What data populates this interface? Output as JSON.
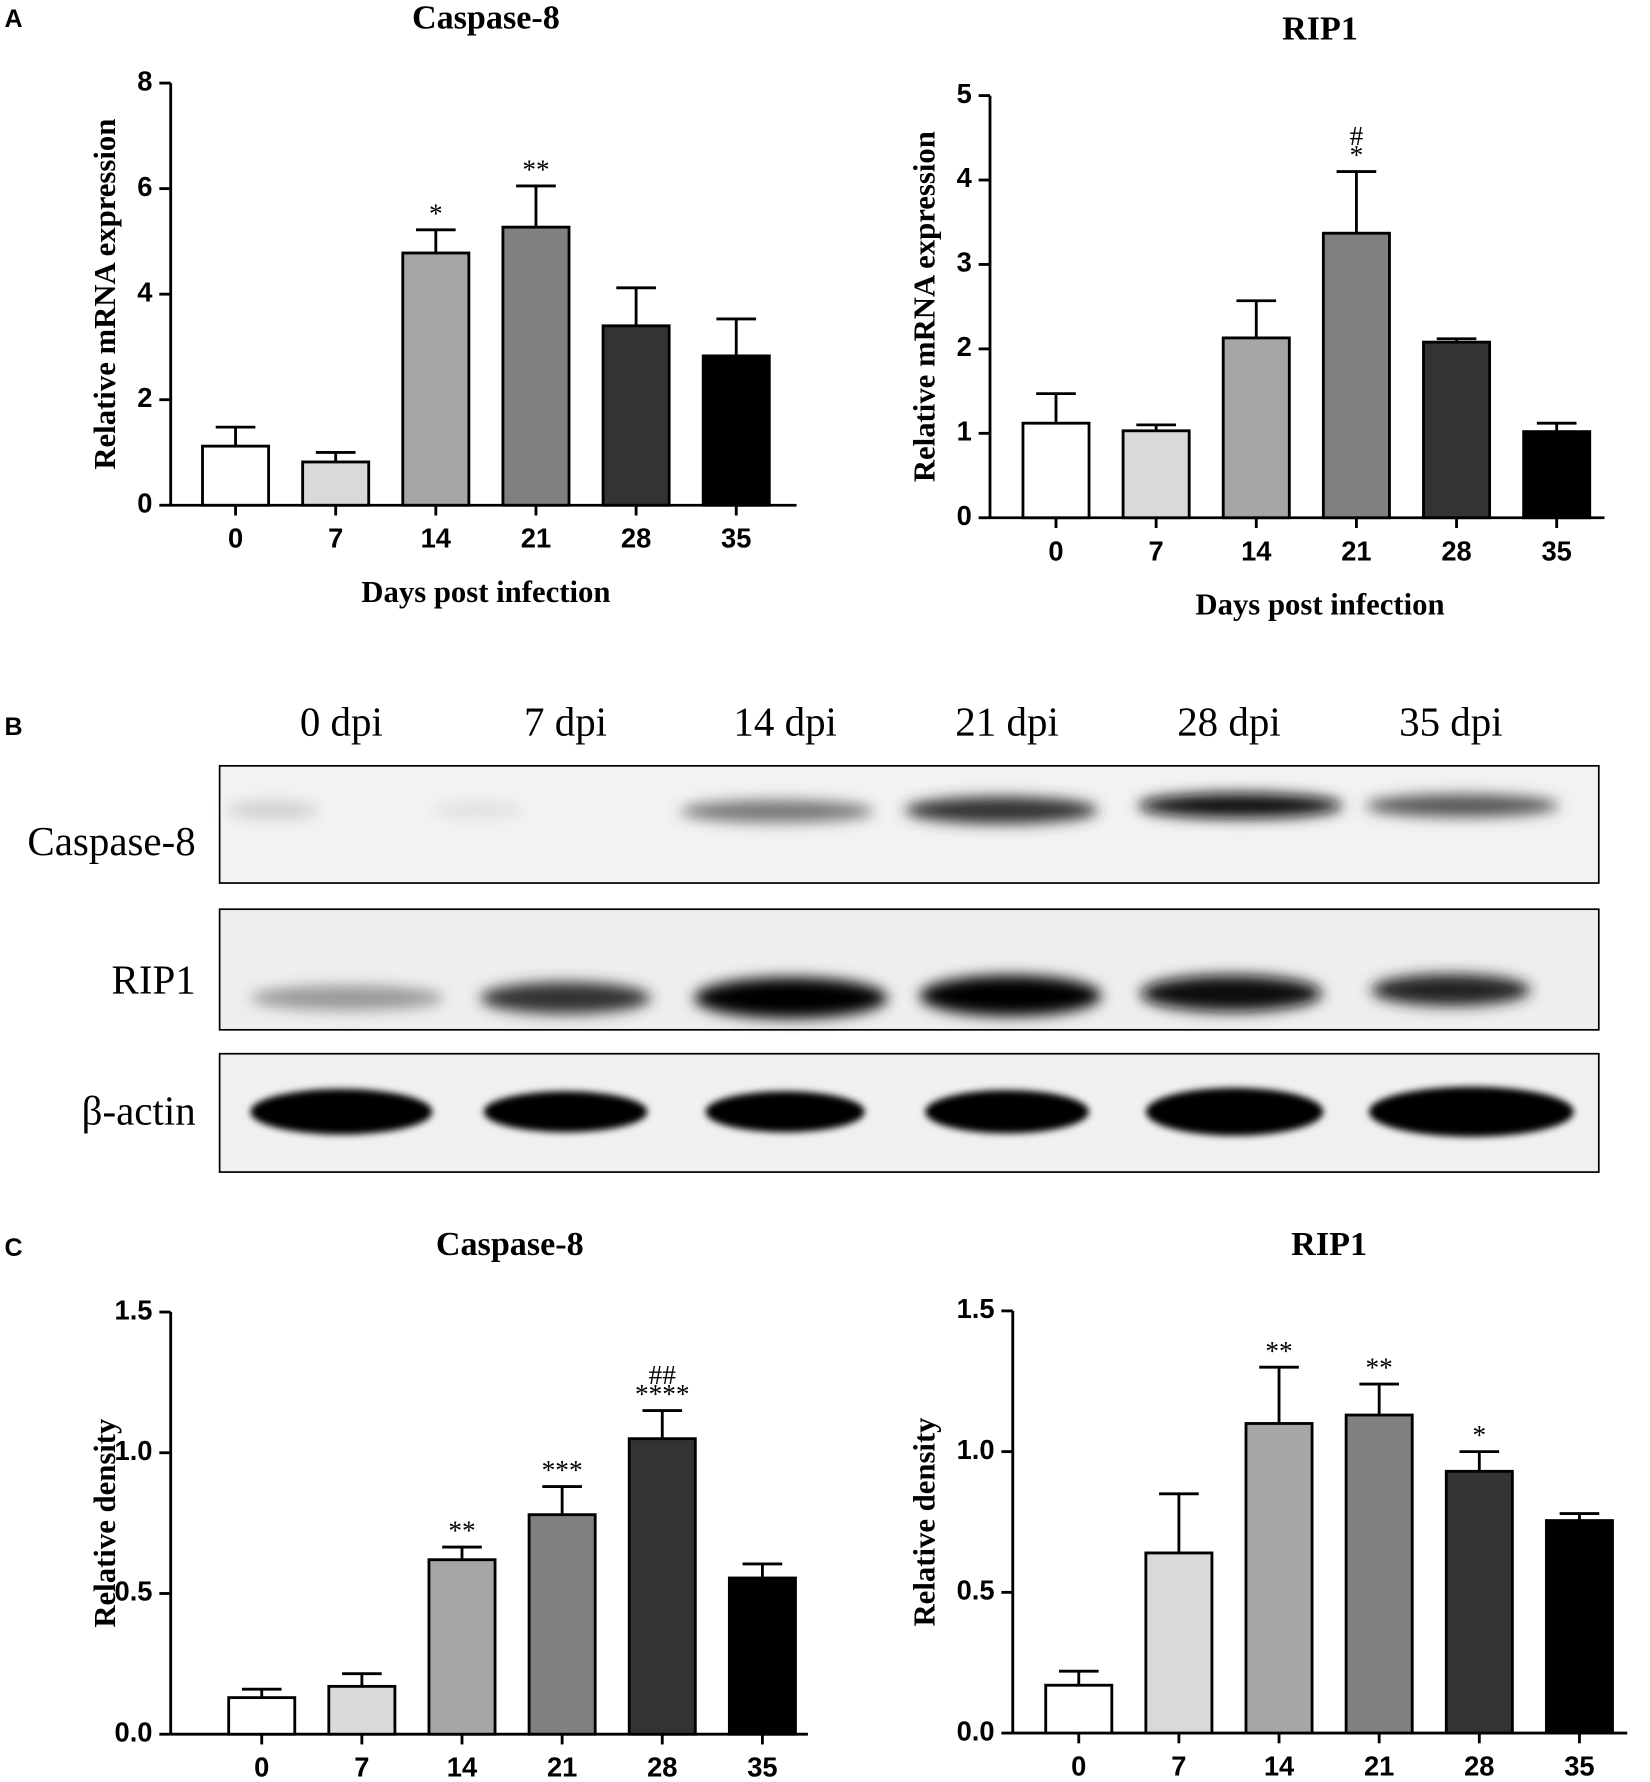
{
  "panels": [
    "A",
    "B",
    "C"
  ],
  "chart_data": [
    {
      "type": "bar",
      "title": "Caspase-8",
      "y_label": "Relative mRNA expression",
      "x_label": "Days post infection",
      "categories": [
        "0",
        "7",
        "14",
        "21",
        "28",
        "35"
      ],
      "values": [
        1.12,
        0.82,
        4.78,
        5.27,
        3.4,
        2.83
      ],
      "errors": [
        0.36,
        0.18,
        0.44,
        0.78,
        0.72,
        0.7
      ],
      "colors": [
        "#ffffff",
        "#d9d9d9",
        "#a6a6a6",
        "#808080",
        "#333333",
        "#000000"
      ],
      "significance": [
        null,
        null,
        [
          "*"
        ],
        [
          "**"
        ],
        null,
        null
      ],
      "ylim": [
        0,
        8
      ],
      "yticks": [
        0,
        2,
        4,
        6,
        8
      ]
    },
    {
      "type": "bar",
      "title": "RIP1",
      "y_label": "Relative mRNA expression",
      "x_label": "Days post infection",
      "categories": [
        "0",
        "7",
        "14",
        "21",
        "28",
        "35"
      ],
      "values": [
        1.12,
        1.03,
        2.13,
        3.37,
        2.08,
        1.02
      ],
      "errors": [
        0.35,
        0.07,
        0.44,
        0.73,
        0.04,
        0.1
      ],
      "colors": [
        "#ffffff",
        "#d9d9d9",
        "#a6a6a6",
        "#808080",
        "#333333",
        "#000000"
      ],
      "significance": [
        null,
        null,
        null,
        [
          "#",
          "*"
        ],
        null,
        null
      ],
      "ylim": [
        0,
        5
      ],
      "yticks": [
        0,
        1,
        2,
        3,
        4,
        5
      ]
    },
    {
      "type": "bar",
      "title": "Caspase-8",
      "y_label": "Relative density",
      "categories": [
        "0",
        "7",
        "14",
        "21",
        "28",
        "35"
      ],
      "values": [
        0.13,
        0.17,
        0.62,
        0.78,
        1.05,
        0.555
      ],
      "errors": [
        0.03,
        0.045,
        0.045,
        0.1,
        0.1,
        0.05
      ],
      "colors": [
        "#ffffff",
        "#d9d9d9",
        "#a6a6a6",
        "#808080",
        "#333333",
        "#000000"
      ],
      "significance": [
        null,
        null,
        [
          "**"
        ],
        [
          "***"
        ],
        [
          "##",
          "****"
        ],
        null
      ],
      "ylim": [
        0,
        1.5
      ],
      "yticks": [
        {
          "value": 0,
          "label": "0.0"
        },
        0.5,
        {
          "value": 1,
          "label": "1.0"
        },
        1.5
      ]
    },
    {
      "type": "bar",
      "title": "RIP1",
      "y_label": "Relative density",
      "categories": [
        "0",
        "7",
        "14",
        "21",
        "28",
        "35"
      ],
      "values": [
        0.17,
        0.64,
        1.1,
        1.13,
        0.93,
        0.755
      ],
      "errors": [
        0.05,
        0.21,
        0.2,
        0.11,
        0.07,
        0.025
      ],
      "colors": [
        "#ffffff",
        "#d9d9d9",
        "#a6a6a6",
        "#808080",
        "#333333",
        "#000000"
      ],
      "significance": [
        null,
        null,
        [
          "**"
        ],
        [
          "**"
        ],
        [
          "*"
        ],
        null
      ],
      "ylim": [
        0,
        1.5
      ],
      "yticks": [
        {
          "value": 0,
          "label": "0.0"
        },
        0.5,
        {
          "value": 1,
          "label": "1.0"
        },
        1.5
      ]
    }
  ],
  "blot": {
    "lanes": [
      "0 dpi",
      "7 dpi",
      "14 dpi",
      "21 dpi",
      "28 dpi",
      "35 dpi"
    ],
    "rows": [
      "Caspase-8",
      "RIP1",
      "β-actin"
    ]
  }
}
